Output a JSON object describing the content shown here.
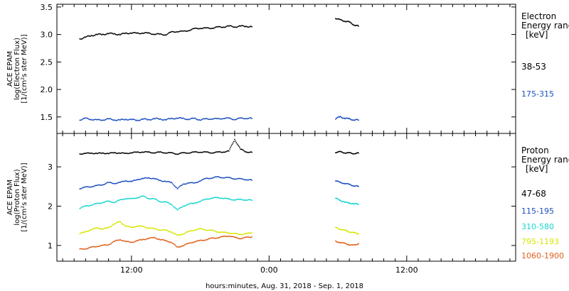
{
  "chart_data": [
    {
      "type": "scatter",
      "panel": "electron",
      "ylabel_lines": [
        "ACE EPAM",
        "log(Electron Flux)",
        "[1/(cm²s ster MeV)]"
      ],
      "ylim": [
        1.2,
        3.55
      ],
      "yticks": [
        1.5,
        2.0,
        2.5,
        3.0,
        3.5
      ],
      "ytick_labels": [
        "1.5",
        "2.0",
        "2.5",
        "3.0",
        "3.5"
      ],
      "legend_title_lines": [
        "Electron",
        "Energy ranges",
        "[keV]"
      ],
      "series": [
        {
          "name": "38-53",
          "color": "#000000",
          "segments": [
            {
              "t": [
                7.5,
                8,
                8.5,
                9,
                9.5,
                10,
                10.5,
                11,
                11.5,
                12,
                12.5,
                13,
                13.5,
                14,
                14.5,
                15,
                15.5,
                16,
                16.5,
                17,
                17.5,
                18,
                18.5,
                19,
                19.5,
                20,
                20.5,
                21,
                21.5,
                22,
                22.5
              ],
              "v": [
                2.92,
                2.95,
                2.98,
                3.0,
                3.0,
                3.02,
                3.01,
                3.0,
                3.02,
                3.03,
                3.02,
                3.03,
                3.02,
                3.01,
                3.0,
                3.0,
                3.04,
                3.06,
                3.05,
                3.08,
                3.1,
                3.12,
                3.11,
                3.12,
                3.13,
                3.14,
                3.15,
                3.14,
                3.15,
                3.15,
                3.14
              ]
            },
            {
              "t": [
                29.8,
                30.2,
                30.6,
                31.0,
                31.4,
                31.8
              ],
              "v": [
                3.3,
                3.26,
                3.25,
                3.22,
                3.18,
                3.15
              ]
            }
          ]
        },
        {
          "name": "175-315",
          "color": "#1c4fbf",
          "segments": [
            {
              "t": [
                7.5,
                8,
                8.5,
                9,
                9.5,
                10,
                10.5,
                11,
                11.5,
                12,
                12.5,
                13,
                13.5,
                14,
                14.5,
                15,
                15.5,
                16,
                16.5,
                17,
                17.5,
                18,
                18.5,
                19,
                19.5,
                20,
                20.5,
                21,
                21.5,
                22,
                22.5
              ],
              "v": [
                1.45,
                1.47,
                1.46,
                1.44,
                1.45,
                1.46,
                1.45,
                1.44,
                1.46,
                1.45,
                1.44,
                1.46,
                1.45,
                1.47,
                1.46,
                1.45,
                1.47,
                1.48,
                1.47,
                1.46,
                1.47,
                1.45,
                1.46,
                1.47,
                1.46,
                1.48,
                1.47,
                1.46,
                1.47,
                1.48,
                1.47
              ]
            },
            {
              "t": [
                29.8,
                30.2,
                30.6,
                31.0,
                31.4,
                31.8
              ],
              "v": [
                1.47,
                1.5,
                1.48,
                1.46,
                1.45,
                1.44
              ]
            }
          ]
        }
      ]
    },
    {
      "type": "scatter",
      "panel": "proton",
      "ylabel_lines": [
        "ACE EPAM",
        "log(Proton Flux)",
        "[1/(cm²s ster MeV)]"
      ],
      "ylim": [
        0.6,
        3.85
      ],
      "yticks": [
        1,
        2,
        3
      ],
      "ytick_labels": [
        "1",
        "2",
        "3"
      ],
      "legend_title_lines": [
        "Proton",
        "Energy ranges",
        "[keV]"
      ],
      "series": [
        {
          "name": "47-68",
          "color": "#000000",
          "segments": [
            {
              "t": [
                7.5,
                8,
                8.5,
                9,
                9.5,
                10,
                10.5,
                11,
                11.5,
                12,
                12.5,
                13,
                13.5,
                14,
                14.5,
                15,
                15.5,
                16,
                16.5,
                17,
                17.5,
                18,
                18.5,
                19,
                19.5,
                20,
                20.5,
                21,
                21.5,
                22,
                22.5
              ],
              "v": [
                3.33,
                3.34,
                3.35,
                3.34,
                3.35,
                3.34,
                3.36,
                3.35,
                3.34,
                3.36,
                3.37,
                3.38,
                3.37,
                3.36,
                3.37,
                3.36,
                3.35,
                3.33,
                3.35,
                3.36,
                3.37,
                3.38,
                3.37,
                3.36,
                3.37,
                3.38,
                3.4,
                3.7,
                3.45,
                3.38,
                3.37
              ]
            },
            {
              "t": [
                29.8,
                30.2,
                30.6,
                31.0,
                31.4,
                31.8
              ],
              "v": [
                3.37,
                3.38,
                3.36,
                3.35,
                3.34,
                3.35
              ]
            }
          ]
        },
        {
          "name": "115-195",
          "color": "#1c4fbf",
          "segments": [
            {
              "t": [
                7.5,
                8,
                8.5,
                9,
                9.5,
                10,
                10.5,
                11,
                11.5,
                12,
                12.5,
                13,
                13.5,
                14,
                14.5,
                15,
                15.5,
                16,
                16.5,
                17,
                17.5,
                18,
                18.5,
                19,
                19.5,
                20,
                20.5,
                21,
                21.5,
                22,
                22.5
              ],
              "v": [
                2.45,
                2.48,
                2.5,
                2.52,
                2.55,
                2.6,
                2.58,
                2.6,
                2.65,
                2.62,
                2.68,
                2.7,
                2.72,
                2.7,
                2.65,
                2.63,
                2.6,
                2.45,
                2.55,
                2.6,
                2.58,
                2.65,
                2.7,
                2.72,
                2.74,
                2.73,
                2.72,
                2.7,
                2.69,
                2.68,
                2.66
              ]
            },
            {
              "t": [
                29.8,
                30.2,
                30.6,
                31.0,
                31.4,
                31.8
              ],
              "v": [
                2.65,
                2.6,
                2.58,
                2.55,
                2.52,
                2.5
              ]
            }
          ]
        },
        {
          "name": "310-580",
          "color": "#19d6cf",
          "segments": [
            {
              "t": [
                7.5,
                8,
                8.5,
                9,
                9.5,
                10,
                10.5,
                11,
                11.5,
                12,
                12.5,
                13,
                13.5,
                14,
                14.5,
                15,
                15.5,
                16,
                16.5,
                17,
                17.5,
                18,
                18.5,
                19,
                19.5,
                20,
                20.5,
                21,
                21.5,
                22,
                22.5
              ],
              "v": [
                1.95,
                2.0,
                2.03,
                2.06,
                2.1,
                2.12,
                2.1,
                2.15,
                2.2,
                2.18,
                2.22,
                2.25,
                2.2,
                2.18,
                2.12,
                2.1,
                2.05,
                1.9,
                2.0,
                2.05,
                2.08,
                2.12,
                2.18,
                2.2,
                2.22,
                2.2,
                2.18,
                2.16,
                2.17,
                2.16,
                2.15
              ]
            },
            {
              "t": [
                29.8,
                30.2,
                30.6,
                31.0,
                31.4,
                31.8
              ],
              "v": [
                2.2,
                2.15,
                2.1,
                2.08,
                2.06,
                2.05
              ]
            }
          ]
        },
        {
          "name": "795-1193",
          "color": "#d6e600",
          "segments": [
            {
              "t": [
                7.5,
                8,
                8.5,
                9,
                9.5,
                10,
                10.5,
                11,
                11.5,
                12,
                12.5,
                13,
                13.5,
                14,
                14.5,
                15,
                15.5,
                16,
                16.5,
                17,
                17.5,
                18,
                18.5,
                19,
                19.5,
                20,
                20.5,
                21,
                21.5,
                22,
                22.5
              ],
              "v": [
                1.3,
                1.35,
                1.4,
                1.45,
                1.42,
                1.45,
                1.55,
                1.6,
                1.5,
                1.45,
                1.5,
                1.48,
                1.45,
                1.42,
                1.4,
                1.38,
                1.35,
                1.25,
                1.3,
                1.35,
                1.4,
                1.42,
                1.4,
                1.38,
                1.35,
                1.33,
                1.32,
                1.3,
                1.28,
                1.3,
                1.32
              ]
            },
            {
              "t": [
                29.8,
                30.2,
                30.6,
                31.0,
                31.4,
                31.8
              ],
              "v": [
                1.45,
                1.42,
                1.38,
                1.35,
                1.32,
                1.3
              ]
            }
          ]
        },
        {
          "name": "1060-1900",
          "color": "#e0601a",
          "segments": [
            {
              "t": [
                7.5,
                8,
                8.5,
                9,
                9.5,
                10,
                10.5,
                11,
                11.5,
                12,
                12.5,
                13,
                13.5,
                14,
                14.5,
                15,
                15.5,
                16,
                16.5,
                17,
                17.5,
                18,
                18.5,
                19,
                19.5,
                20,
                20.5,
                21,
                21.5,
                22,
                22.5
              ],
              "v": [
                0.9,
                0.92,
                0.95,
                0.98,
                1.0,
                1.02,
                1.1,
                1.15,
                1.1,
                1.08,
                1.12,
                1.15,
                1.18,
                1.2,
                1.15,
                1.12,
                1.08,
                0.95,
                1.0,
                1.05,
                1.1,
                1.12,
                1.15,
                1.18,
                1.2,
                1.22,
                1.25,
                1.2,
                1.18,
                1.2,
                1.22
              ]
            },
            {
              "t": [
                29.8,
                30.2,
                30.6,
                31.0,
                31.4,
                31.8
              ],
              "v": [
                1.1,
                1.08,
                1.05,
                1.02,
                1.0,
                1.05
              ]
            }
          ]
        }
      ]
    }
  ],
  "x_axis": {
    "range_hours": [
      5.5,
      45.5
    ],
    "ticks": [
      {
        "t": 12,
        "label": "12:00"
      },
      {
        "t": 24,
        "label": "0:00"
      },
      {
        "t": 36,
        "label": "12:00"
      }
    ],
    "minor_step_hours": 1,
    "xlabel": "hours:minutes, Aug. 31, 2018 - Sep.  1, 2018"
  }
}
